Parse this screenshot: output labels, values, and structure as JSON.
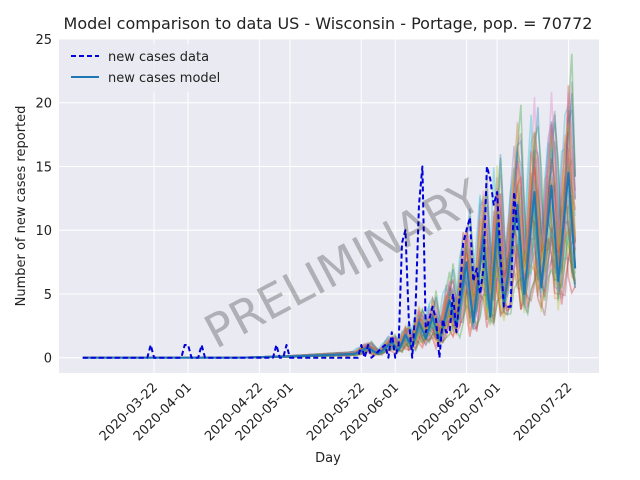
{
  "chart_data": {
    "type": "line",
    "title": "Model comparison to data US - Wisconsin - Portage, pop. = 70772",
    "xlabel": "Day",
    "ylabel": "Number of new cases reported",
    "watermark": "PRELIMINARY",
    "x_start": "2020-03-01",
    "x_end": "2020-07-24",
    "xlim": [
      "2020-02-23",
      "2020-07-31"
    ],
    "ylim": [
      -1.2,
      25
    ],
    "yticks": [
      0,
      5,
      10,
      15,
      20,
      25
    ],
    "xticks": [
      "2020-03-22",
      "2020-04-01",
      "2020-04-22",
      "2020-05-01",
      "2020-05-22",
      "2020-06-01",
      "2020-06-22",
      "2020-07-01",
      "2020-07-22"
    ],
    "grid": true,
    "legend_position": "top-left",
    "legend": [
      {
        "label": "new cases data",
        "style": "dashed",
        "color": "#0000dd"
      },
      {
        "label": "new cases model",
        "style": "solid",
        "color": "#1f77b4"
      }
    ],
    "series": [
      {
        "name": "new cases data",
        "color": "#0000dd",
        "style": "dashed",
        "points": [
          [
            "2020-03-01",
            0
          ],
          [
            "2020-03-20",
            0
          ],
          [
            "2020-03-21",
            1
          ],
          [
            "2020-03-22",
            0
          ],
          [
            "2020-03-30",
            0
          ],
          [
            "2020-03-31",
            1
          ],
          [
            "2020-04-01",
            1
          ],
          [
            "2020-04-02",
            0
          ],
          [
            "2020-04-04",
            0
          ],
          [
            "2020-04-05",
            1
          ],
          [
            "2020-04-06",
            0
          ],
          [
            "2020-04-26",
            0
          ],
          [
            "2020-04-27",
            1
          ],
          [
            "2020-04-28",
            0
          ],
          [
            "2020-04-29",
            0
          ],
          [
            "2020-04-30",
            1
          ],
          [
            "2020-05-01",
            0
          ],
          [
            "2020-05-21",
            0
          ],
          [
            "2020-05-22",
            1
          ],
          [
            "2020-05-23",
            0
          ],
          [
            "2020-05-24",
            1
          ],
          [
            "2020-05-25",
            0
          ],
          [
            "2020-05-29",
            1
          ],
          [
            "2020-05-30",
            0
          ],
          [
            "2020-05-31",
            2
          ],
          [
            "2020-06-01",
            0
          ],
          [
            "2020-06-02",
            1
          ],
          [
            "2020-06-03",
            9
          ],
          [
            "2020-06-04",
            10
          ],
          [
            "2020-06-05",
            3
          ],
          [
            "2020-06-06",
            0
          ],
          [
            "2020-06-07",
            4
          ],
          [
            "2020-06-08",
            12
          ],
          [
            "2020-06-09",
            15
          ],
          [
            "2020-06-10",
            2
          ],
          [
            "2020-06-11",
            3
          ],
          [
            "2020-06-12",
            4
          ],
          [
            "2020-06-13",
            3
          ],
          [
            "2020-06-14",
            0
          ],
          [
            "2020-06-15",
            3
          ],
          [
            "2020-06-16",
            2
          ],
          [
            "2020-06-17",
            2
          ],
          [
            "2020-06-18",
            5
          ],
          [
            "2020-06-19",
            2
          ],
          [
            "2020-06-20",
            5
          ],
          [
            "2020-06-21",
            9
          ],
          [
            "2020-06-22",
            10
          ],
          [
            "2020-06-23",
            11
          ],
          [
            "2020-06-24",
            6
          ],
          [
            "2020-06-25",
            7
          ],
          [
            "2020-06-26",
            5
          ],
          [
            "2020-06-27",
            7
          ],
          [
            "2020-06-28",
            15
          ],
          [
            "2020-06-29",
            14
          ],
          [
            "2020-06-30",
            12
          ],
          [
            "2020-07-01",
            13
          ],
          [
            "2020-07-02",
            8
          ],
          [
            "2020-07-03",
            4
          ],
          [
            "2020-07-04",
            4
          ],
          [
            "2020-07-05",
            4
          ],
          [
            "2020-07-06",
            13
          ],
          [
            "2020-07-07",
            10
          ]
        ]
      },
      {
        "name": "new cases model",
        "color": "#1f77b4",
        "style": "solid",
        "points": [
          [
            "2020-03-01",
            0
          ],
          [
            "2020-04-15",
            0
          ],
          [
            "2020-05-01",
            0.1
          ],
          [
            "2020-05-10",
            0.2
          ],
          [
            "2020-05-20",
            0.3
          ],
          [
            "2020-05-24",
            0.8
          ],
          [
            "2020-05-27",
            0.3
          ],
          [
            "2020-05-31",
            1.2
          ],
          [
            "2020-06-02",
            0.6
          ],
          [
            "2020-06-04",
            1.8
          ],
          [
            "2020-06-06",
            0.8
          ],
          [
            "2020-06-08",
            2.8
          ],
          [
            "2020-06-10",
            1.5
          ],
          [
            "2020-06-12",
            3.2
          ],
          [
            "2020-06-14",
            1.4
          ],
          [
            "2020-06-17",
            4.5
          ],
          [
            "2020-06-19",
            2.5
          ],
          [
            "2020-06-22",
            7.5
          ],
          [
            "2020-06-24",
            2.8
          ],
          [
            "2020-06-27",
            9.5
          ],
          [
            "2020-06-29",
            3.2
          ],
          [
            "2020-07-01",
            10.5
          ],
          [
            "2020-07-03",
            4.2
          ],
          [
            "2020-07-07",
            12
          ],
          [
            "2020-07-09",
            5
          ],
          [
            "2020-07-12",
            13
          ],
          [
            "2020-07-14",
            5.5
          ],
          [
            "2020-07-17",
            13.5
          ],
          [
            "2020-07-19",
            6
          ],
          [
            "2020-07-22",
            14.5
          ],
          [
            "2020-07-24",
            7
          ]
        ]
      }
    ],
    "ensemble_colors": [
      "#1f77b4",
      "#ff7f0e",
      "#2ca02c",
      "#d62728",
      "#9467bd",
      "#8c564b",
      "#bcbd22",
      "#17becf",
      "#e377c2",
      "#7f7f7f"
    ]
  }
}
